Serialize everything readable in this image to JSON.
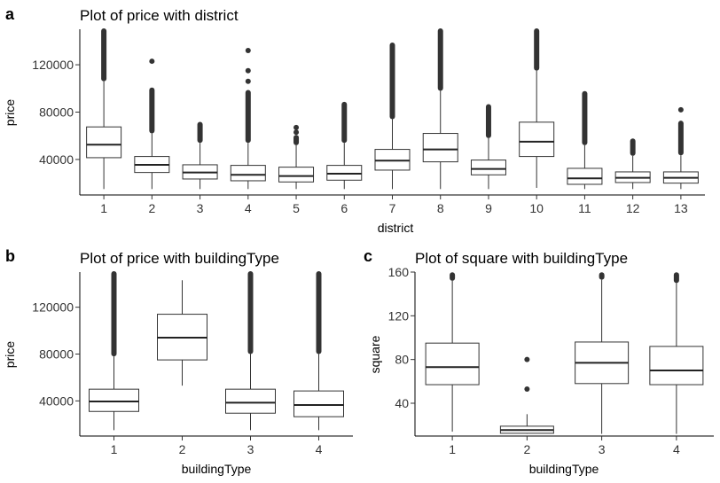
{
  "chart_data": [
    {
      "type": "box",
      "panel_label": "a",
      "title": "Plot of price with district",
      "xlabel": "district",
      "ylabel": "price",
      "categories": [
        "1",
        "2",
        "3",
        "4",
        "5",
        "6",
        "7",
        "8",
        "9",
        "10",
        "11",
        "12",
        "13"
      ],
      "ylim": [
        10000,
        150000
      ],
      "yticks": [
        40000,
        80000,
        120000
      ],
      "ytick_labels": [
        "40000",
        "80000",
        "120000"
      ],
      "boxes": [
        {
          "min": 15000,
          "q1": 41500,
          "median": 52500,
          "q3": 67500,
          "max": 106000,
          "outliers_max": 150000
        },
        {
          "min": 15000,
          "q1": 29000,
          "median": 35500,
          "q3": 42500,
          "max": 62000,
          "outliers_max": 100000,
          "outliers": [
            123000
          ]
        },
        {
          "min": 15000,
          "q1": 23500,
          "median": 29000,
          "q3": 35500,
          "max": 54000,
          "outliers_max": 71000
        },
        {
          "min": 15000,
          "q1": 22000,
          "median": 27000,
          "q3": 35000,
          "max": 54000,
          "outliers_max": 98000,
          "outliers": [
            106000,
            115000,
            132000
          ]
        },
        {
          "min": 15000,
          "q1": 21000,
          "median": 26000,
          "q3": 33500,
          "max": 52000,
          "outliers_max": 60000,
          "outliers": [
            63000,
            67000
          ]
        },
        {
          "min": 15000,
          "q1": 22500,
          "median": 28000,
          "q3": 35000,
          "max": 54000,
          "outliers_max": 88000
        },
        {
          "min": 15000,
          "q1": 31000,
          "median": 39000,
          "q3": 48500,
          "max": 74000,
          "outliers_max": 138000
        },
        {
          "min": 15000,
          "q1": 38000,
          "median": 48500,
          "q3": 62000,
          "max": 98000,
          "outliers_max": 150000
        },
        {
          "min": 15000,
          "q1": 27000,
          "median": 32000,
          "q3": 39500,
          "max": 58000,
          "outliers_max": 86000
        },
        {
          "min": 16000,
          "q1": 42500,
          "median": 55000,
          "q3": 71500,
          "max": 115000,
          "outliers_max": 150000
        },
        {
          "min": 15000,
          "q1": 19000,
          "median": 24000,
          "q3": 32500,
          "max": 52000,
          "outliers_max": 97000
        },
        {
          "min": 15000,
          "q1": 20500,
          "median": 24500,
          "q3": 29500,
          "max": 43000,
          "outliers_max": 57000
        },
        {
          "min": 15000,
          "q1": 20000,
          "median": 24500,
          "q3": 29500,
          "max": 43500,
          "outliers_max": 72000,
          "outliers": [
            82000
          ]
        }
      ]
    },
    {
      "type": "box",
      "panel_label": "b",
      "title": "Plot of price with buildingType",
      "xlabel": "buildingType",
      "ylabel": "price",
      "categories": [
        "1",
        "2",
        "3",
        "4"
      ],
      "ylim": [
        10000,
        150000
      ],
      "yticks": [
        40000,
        80000,
        120000
      ],
      "ytick_labels": [
        "40000",
        "80000",
        "120000"
      ],
      "boxes": [
        {
          "min": 15000,
          "q1": 31000,
          "median": 39500,
          "q3": 50000,
          "max": 78000,
          "outliers_max": 150000
        },
        {
          "min": 53000,
          "q1": 75000,
          "median": 94000,
          "q3": 114000,
          "max": 143000
        },
        {
          "min": 15000,
          "q1": 29500,
          "median": 38500,
          "q3": 50000,
          "max": 80000,
          "outliers_max": 150000
        },
        {
          "min": 15000,
          "q1": 26500,
          "median": 36500,
          "q3": 48500,
          "max": 80000,
          "outliers_max": 150000
        }
      ]
    },
    {
      "type": "box",
      "panel_label": "c",
      "title": "Plot of square with buildingType",
      "xlabel": "buildingType",
      "ylabel": "square",
      "categories": [
        "1",
        "2",
        "3",
        "4"
      ],
      "ylim": [
        10,
        160
      ],
      "yticks": [
        40,
        80,
        120,
        160
      ],
      "ytick_labels": [
        "40",
        "80",
        "120",
        "160"
      ],
      "boxes": [
        {
          "min": 14,
          "q1": 57,
          "median": 73,
          "q3": 95,
          "max": 152,
          "outliers_max": 159
        },
        {
          "min": 12,
          "q1": 12.5,
          "median": 15.5,
          "q3": 19,
          "max": 30,
          "outliers": [
            53,
            80
          ]
        },
        {
          "min": 12,
          "q1": 58,
          "median": 77,
          "q3": 96,
          "max": 153,
          "outliers_max": 159
        },
        {
          "min": 12,
          "q1": 57,
          "median": 70,
          "q3": 92,
          "max": 150,
          "outliers_max": 159
        }
      ]
    }
  ]
}
